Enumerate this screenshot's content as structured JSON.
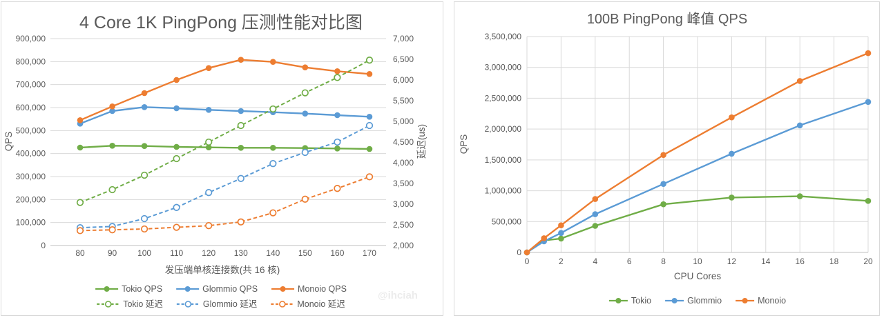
{
  "watermark": "@ihciah",
  "colors": {
    "tokio": "#70AD47",
    "glommio": "#5B9BD5",
    "monoio": "#ED7D31",
    "grid": "#d9d9d9",
    "axis_text": "#595959"
  },
  "chart_data": [
    {
      "type": "line",
      "title": "4 Core 1K PingPong 压测性能对比图",
      "xlabel": "发压端单核连接数(共 16 核)",
      "ylabel_left": "QPS",
      "ylabel_right": "延迟(us)",
      "x_categories": [
        80,
        90,
        100,
        110,
        120,
        130,
        140,
        150,
        160,
        170
      ],
      "y_left_axis": {
        "min": 0,
        "max": 900000,
        "step": 100000
      },
      "y_right_axis": {
        "min": 2000,
        "max": 7000,
        "step": 500
      },
      "grid": "horizontal-only",
      "legend_position": "bottom",
      "series": [
        {
          "name": "Tokio QPS",
          "axis": "left",
          "line": "solid",
          "marker": "filled",
          "color": "#70AD47",
          "values": [
            426000,
            434000,
            433000,
            429000,
            427000,
            425000,
            425000,
            424000,
            422000,
            420000
          ]
        },
        {
          "name": "Glommio QPS",
          "axis": "left",
          "line": "solid",
          "marker": "filled",
          "color": "#5B9BD5",
          "values": [
            530000,
            585000,
            602000,
            597000,
            590000,
            585000,
            580000,
            574000,
            567000,
            560000
          ]
        },
        {
          "name": "Monoio QPS",
          "axis": "left",
          "line": "solid",
          "marker": "filled",
          "color": "#ED7D31",
          "values": [
            545000,
            605000,
            663000,
            720000,
            772000,
            808000,
            799000,
            775000,
            758000,
            746000
          ]
        },
        {
          "name": "Tokio 延迟",
          "axis": "right",
          "line": "dashed",
          "marker": "open",
          "color": "#70AD47",
          "values": [
            3040,
            3350,
            3700,
            4100,
            4500,
            4900,
            5300,
            5690,
            6060,
            6480
          ]
        },
        {
          "name": "Glommio 延迟",
          "axis": "right",
          "line": "dashed",
          "marker": "open",
          "color": "#5B9BD5",
          "values": [
            2430,
            2460,
            2650,
            2920,
            3280,
            3620,
            3980,
            4250,
            4500,
            4900
          ]
        },
        {
          "name": "Monoio 延迟",
          "axis": "right",
          "line": "dashed",
          "marker": "open",
          "color": "#ED7D31",
          "values": [
            2360,
            2380,
            2400,
            2440,
            2480,
            2570,
            2790,
            3120,
            3380,
            3660
          ]
        }
      ],
      "legend_rows": [
        [
          "Tokio QPS",
          "Glommio QPS",
          "Monoio QPS"
        ],
        [
          "Tokio 延迟",
          "Glommio 延迟",
          "Monoio 延迟"
        ]
      ]
    },
    {
      "type": "line",
      "title": "100B PingPong 峰值 QPS",
      "xlabel": "CPU Cores",
      "ylabel": "QPS",
      "x": [
        0,
        1,
        2,
        4,
        8,
        12,
        16,
        20
      ],
      "x_axis": {
        "min": 0,
        "max": 20,
        "tick_step": 2
      },
      "y_axis": {
        "min": 0,
        "max": 3500000,
        "step": 500000
      },
      "grid": "both",
      "legend_position": "bottom",
      "series": [
        {
          "name": "Tokio",
          "line": "solid",
          "marker": "filled",
          "color": "#70AD47",
          "values": [
            0,
            195000,
            225000,
            430000,
            780000,
            890000,
            910000,
            835000
          ]
        },
        {
          "name": "Glommio",
          "line": "solid",
          "marker": "filled",
          "color": "#5B9BD5",
          "values": [
            0,
            180000,
            315000,
            620000,
            1110000,
            1600000,
            2060000,
            2440000
          ]
        },
        {
          "name": "Monoio",
          "line": "solid",
          "marker": "filled",
          "color": "#ED7D31",
          "values": [
            0,
            230000,
            440000,
            865000,
            1580000,
            2190000,
            2780000,
            3230000
          ]
        }
      ]
    }
  ]
}
